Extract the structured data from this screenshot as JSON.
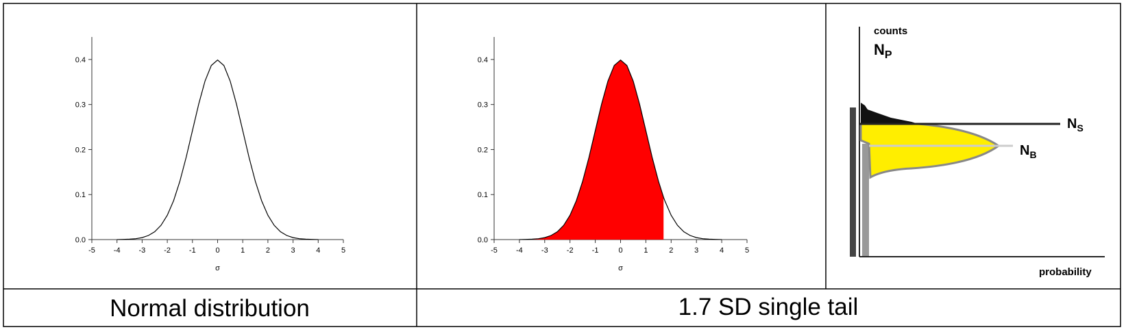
{
  "chart_data": [
    {
      "type": "line",
      "color": "#000000",
      "xlabel": "σ",
      "x": [
        -4,
        -3.75,
        -3.5,
        -3.25,
        -3,
        -2.75,
        -2.5,
        -2.25,
        -2,
        -1.75,
        -1.5,
        -1.25,
        -1,
        -0.75,
        -0.5,
        -0.25,
        0,
        0.25,
        0.5,
        0.75,
        1,
        1.25,
        1.5,
        1.75,
        2,
        2.25,
        2.5,
        2.75,
        3,
        3.25,
        3.5,
        3.75,
        4
      ],
      "values": [
        0.0001,
        0.0004,
        0.0009,
        0.002,
        0.0044,
        0.0091,
        0.0175,
        0.0317,
        0.054,
        0.0863,
        0.1295,
        0.1826,
        0.242,
        0.3011,
        0.3521,
        0.3867,
        0.3989,
        0.3867,
        0.3521,
        0.3011,
        0.242,
        0.1826,
        0.1295,
        0.0863,
        0.054,
        0.0317,
        0.0175,
        0.0091,
        0.0044,
        0.002,
        0.0009,
        0.0004,
        0.0001
      ],
      "xlim": [
        -5,
        5
      ],
      "xticks": [
        -5,
        -4,
        -3,
        -2,
        -1,
        0,
        1,
        2,
        3,
        4,
        5
      ],
      "ylim": [
        0,
        0.45
      ],
      "yticks": [
        {
          "value": 0,
          "label": "0.0"
        },
        0.1,
        0.2,
        0.3,
        0.4
      ]
    },
    {
      "type": "line",
      "color": "#000000",
      "fill_color": "#ff0000",
      "fill_until": 1.7,
      "xlabel": "σ",
      "x": [
        -4,
        -3.75,
        -3.5,
        -3.25,
        -3,
        -2.75,
        -2.5,
        -2.25,
        -2,
        -1.75,
        -1.5,
        -1.25,
        -1,
        -0.75,
        -0.5,
        -0.25,
        0,
        0.25,
        0.5,
        0.75,
        1,
        1.25,
        1.5,
        1.7,
        1.75,
        2,
        2.25,
        2.5,
        2.75,
        3,
        3.25,
        3.5,
        3.75,
        4
      ],
      "values": [
        0.0001,
        0.0004,
        0.0009,
        0.002,
        0.0044,
        0.0091,
        0.0175,
        0.0317,
        0.054,
        0.0863,
        0.1295,
        0.1826,
        0.242,
        0.3011,
        0.3521,
        0.3867,
        0.3989,
        0.3867,
        0.3521,
        0.3011,
        0.242,
        0.1826,
        0.1295,
        0.094,
        0.0863,
        0.054,
        0.0317,
        0.0175,
        0.0091,
        0.0044,
        0.002,
        0.0009,
        0.0004,
        0.0001
      ],
      "xlim": [
        -5,
        5
      ],
      "xticks": [
        -5,
        -4,
        -3,
        -2,
        -1,
        0,
        1,
        2,
        3,
        4,
        5
      ],
      "ylim": [
        0,
        0.45
      ],
      "yticks": [
        {
          "value": 0,
          "label": "0.0"
        },
        0.1,
        0.2,
        0.3,
        0.4
      ]
    }
  ],
  "diagram": {
    "counts": "counts",
    "np": {
      "main": "N",
      "sub": "P"
    },
    "ns": {
      "main": "N",
      "sub": "S"
    },
    "nb": {
      "main": "N",
      "sub": "B"
    },
    "probability": "probability"
  },
  "captions": [
    "Normal distribution",
    "1.7 SD single tail"
  ]
}
